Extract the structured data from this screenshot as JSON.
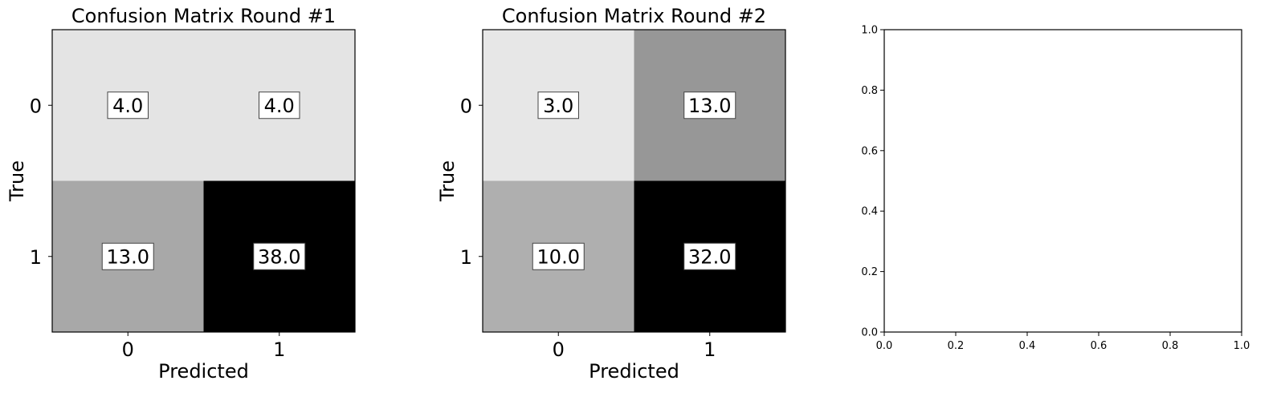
{
  "chart_data": [
    {
      "type": "heatmap",
      "title": "Confusion Matrix Round #1",
      "xlabel": "Predicted",
      "ylabel": "True",
      "x_categories": [
        "0",
        "1"
      ],
      "y_categories": [
        "0",
        "1"
      ],
      "values": [
        [
          4.0,
          4.0
        ],
        [
          13.0,
          38.0
        ]
      ],
      "value_labels": [
        [
          "4.0",
          "4.0"
        ],
        [
          "13.0",
          "38.0"
        ]
      ],
      "colormap": "gray_r",
      "grid": false
    },
    {
      "type": "heatmap",
      "title": "Confusion Matrix Round #2",
      "xlabel": "Predicted",
      "ylabel": "True",
      "x_categories": [
        "0",
        "1"
      ],
      "y_categories": [
        "0",
        "1"
      ],
      "values": [
        [
          3.0,
          13.0
        ],
        [
          10.0,
          32.0
        ]
      ],
      "value_labels": [
        [
          "3.0",
          "13.0"
        ],
        [
          "10.0",
          "32.0"
        ]
      ],
      "colormap": "gray_r",
      "grid": false
    },
    {
      "type": "scatter",
      "title": "",
      "xlabel": "",
      "ylabel": "",
      "xlim": [
        0.0,
        1.0
      ],
      "ylim": [
        0.0,
        1.0
      ],
      "x_ticks": [
        "0.0",
        "0.2",
        "0.4",
        "0.6",
        "0.8",
        "1.0"
      ],
      "y_ticks": [
        "0.0",
        "0.2",
        "0.4",
        "0.6",
        "0.8",
        "1.0"
      ],
      "series": [],
      "grid": false
    }
  ]
}
